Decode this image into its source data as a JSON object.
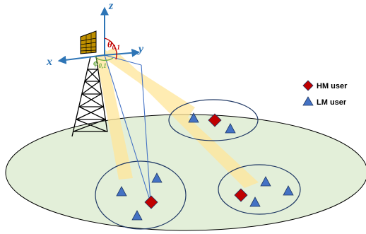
{
  "axes": {
    "z_label": "z",
    "x_label": "x",
    "y_label": "y"
  },
  "angles": {
    "theta_symbol": "θ",
    "theta_subscript": "0,1",
    "phi_symbol": "ϕ",
    "phi_subscript": "0,1"
  },
  "legend": {
    "hm_label": "HM user",
    "lm_label": "LM user"
  },
  "colors": {
    "ground_fill": "#E3EFD9",
    "outline": "#1F3864",
    "axis": "#2E75B6",
    "beam": "#FFE699",
    "hm_user": "#C00000",
    "lm_user": "#4472C4",
    "theta": "#C00000",
    "phi": "#70AD47",
    "antenna_panel": "#BF9000"
  },
  "icons": {
    "hm_user": "red-diamond",
    "lm_user": "blue-triangle",
    "base_station": "lattice-tower-with-panel-antenna"
  }
}
